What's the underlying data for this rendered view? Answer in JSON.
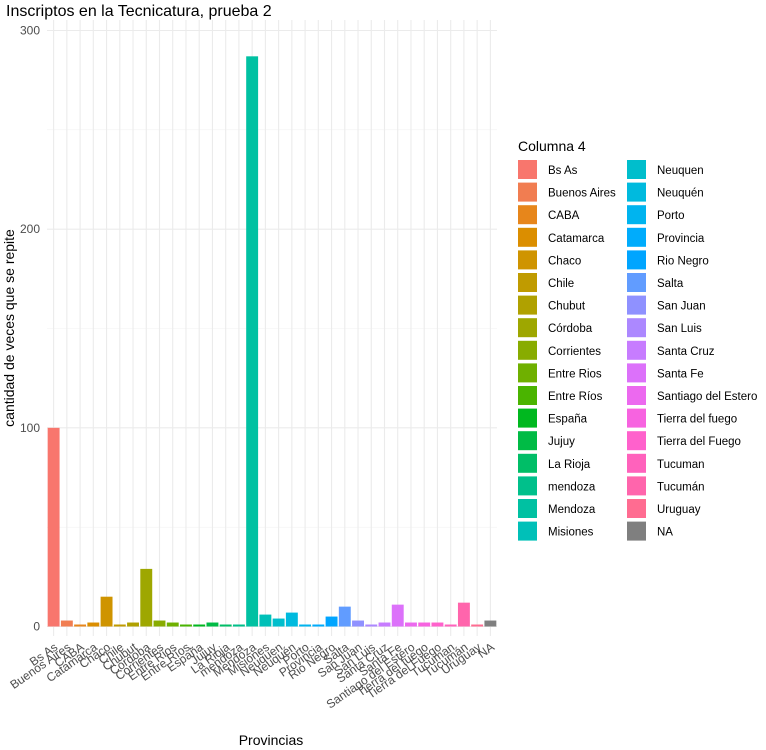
{
  "chart_data": {
    "type": "bar",
    "title": "Inscriptos en la Tecnicatura, prueba 2",
    "xlabel": "Provincias",
    "ylabel": "cantidad de veces que se repite",
    "ylim": [
      0,
      300
    ],
    "yticks": [
      0,
      100,
      200,
      300
    ],
    "grid": true,
    "legend": {
      "title": "Columna 4",
      "position": "right"
    },
    "categories": [
      "Bs As",
      "Buenos Aires",
      "CABA",
      "Catamarca",
      "Chaco",
      "Chile",
      "Chubut",
      "Córdoba",
      "Corrientes",
      "Entre Rios",
      "Entre Ríos",
      "España",
      "Jujuy",
      "La Rioja",
      "mendoza",
      "Mendoza",
      "Misiones",
      "Neuquen",
      "Neuquén",
      "Porto",
      "Provincia",
      "Rio Negro",
      "Salta",
      "San Juan",
      "San Luis",
      "Santa Cruz",
      "Santa Fe",
      "Santiago del Estero",
      "Tierra del fuego",
      "Tierra del Fuego",
      "Tucuman",
      "Tucumán",
      "Uruguay",
      "NA"
    ],
    "values": [
      100,
      3,
      1,
      2,
      15,
      1,
      2,
      29,
      3,
      2,
      1,
      1,
      2,
      1,
      1,
      287,
      6,
      4,
      7,
      1,
      1,
      5,
      10,
      3,
      1,
      2,
      11,
      2,
      2,
      2,
      1,
      12,
      1,
      3
    ],
    "colors": [
      "#F8766D",
      "#F17D51",
      "#E7861B",
      "#DB8E00",
      "#CF9400",
      "#C09B00",
      "#B0A100",
      "#9EA700",
      "#88AC00",
      "#6FB000",
      "#4AB400",
      "#00B81F",
      "#00BB45",
      "#00BE67",
      "#00C08B",
      "#00C1A2",
      "#00C0B8",
      "#00BECC",
      "#00BADE",
      "#00B4EF",
      "#00ACFC",
      "#00A5FF",
      "#619CFF",
      "#8F91FF",
      "#AC88FF",
      "#C77CFF",
      "#DC71FA",
      "#EC69EF",
      "#F763E0",
      "#FF61CC",
      "#FF62BC",
      "#FF65AC",
      "#FF6C91",
      "#7F7F7F"
    ]
  }
}
